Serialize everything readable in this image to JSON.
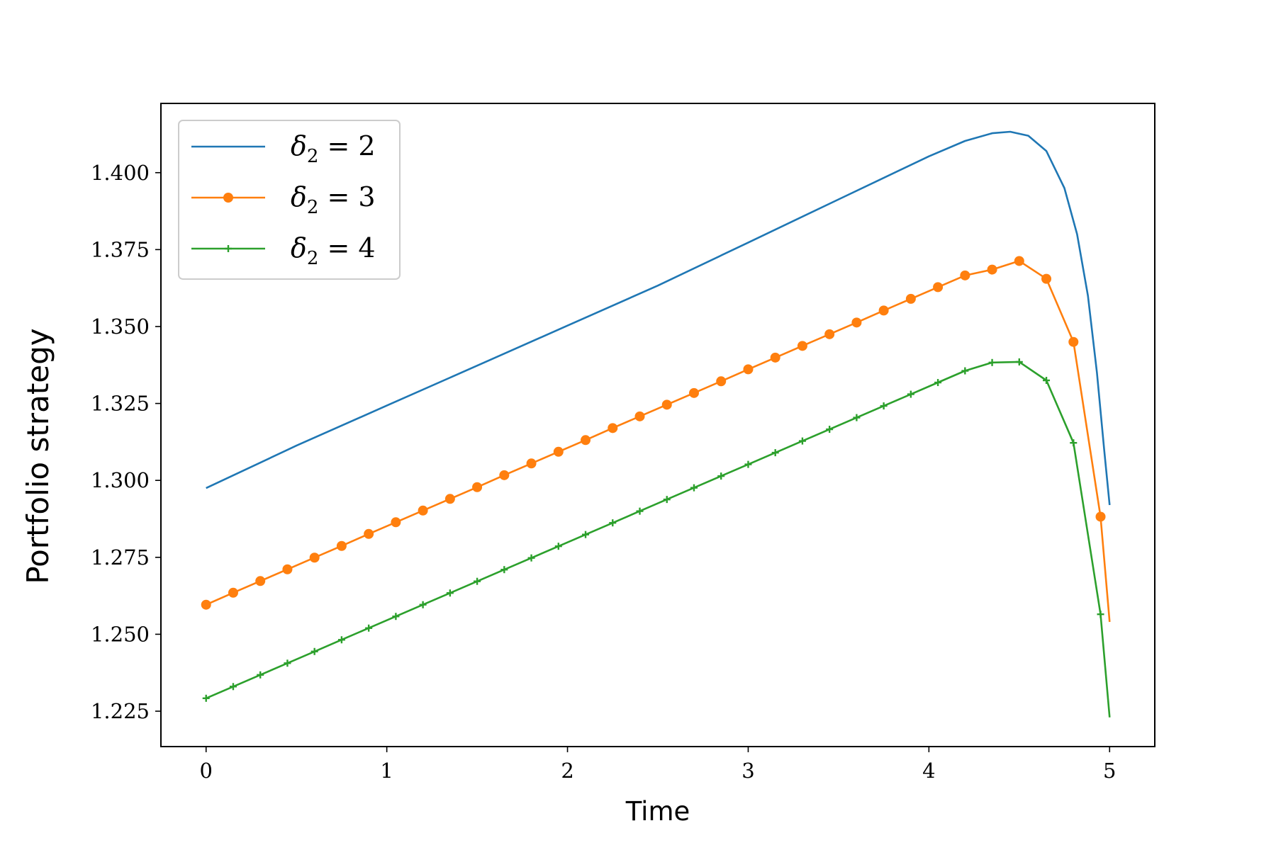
{
  "chart_data": {
    "type": "line",
    "title": "",
    "xlabel": "Time",
    "ylabel": "Portfolio strategy",
    "xlim": [
      -0.25,
      5.25
    ],
    "ylim": [
      1.2135,
      1.4225
    ],
    "xticks": [
      0,
      1,
      2,
      3,
      4,
      5
    ],
    "xtick_labels": [
      "0",
      "1",
      "2",
      "3",
      "4",
      "5"
    ],
    "yticks": [
      1.225,
      1.25,
      1.275,
      1.3,
      1.325,
      1.35,
      1.375,
      1.4
    ],
    "ytick_labels": [
      "1.225",
      "1.250",
      "1.275",
      "1.300",
      "1.325",
      "1.350",
      "1.375",
      "1.400"
    ],
    "grid": false,
    "legend_position": "upper-left",
    "series": [
      {
        "name": "δ₂ = 2",
        "color": "#1f77b4",
        "marker": "none",
        "x": [
          0,
          0.5,
          1,
          1.5,
          2,
          2.5,
          3,
          3.5,
          4,
          4.2,
          4.35,
          4.45,
          4.55,
          4.65,
          4.75,
          4.82,
          4.88,
          4.93,
          4.97,
          5.0
        ],
        "y": [
          1.2975,
          1.3113,
          1.3243,
          1.3373,
          1.3503,
          1.3633,
          1.3773,
          1.3913,
          1.4053,
          1.4103,
          1.4128,
          1.4133,
          1.412,
          1.407,
          1.395,
          1.38,
          1.36,
          1.335,
          1.31,
          1.292
        ]
      },
      {
        "name": "δ₂ = 3",
        "color": "#ff7f0e",
        "marker": "circle",
        "x": [
          0,
          0.15,
          0.3,
          0.45,
          0.6,
          0.75,
          0.9,
          1.05,
          1.2,
          1.35,
          1.5,
          1.65,
          1.8,
          1.95,
          2.1,
          2.25,
          2.4,
          2.55,
          2.7,
          2.85,
          3.0,
          3.15,
          3.3,
          3.45,
          3.6,
          3.75,
          3.9,
          4.05,
          4.2,
          4.35,
          4.5,
          4.65,
          4.8,
          4.95,
          5.0
        ],
        "y": [
          1.2596,
          1.2635,
          1.2673,
          1.2711,
          1.2749,
          1.2787,
          1.2826,
          1.2864,
          1.2902,
          1.294,
          1.2978,
          1.3017,
          1.3055,
          1.3093,
          1.3131,
          1.317,
          1.3208,
          1.3246,
          1.3284,
          1.3322,
          1.3361,
          1.3399,
          1.3437,
          1.3475,
          1.3513,
          1.3552,
          1.359,
          1.3628,
          1.3666,
          1.3685,
          1.3713,
          1.3655,
          1.345,
          1.2882,
          1.254
        ]
      },
      {
        "name": "δ₂ = 4",
        "color": "#2ca02c",
        "marker": "plus",
        "x": [
          0,
          0.15,
          0.3,
          0.45,
          0.6,
          0.75,
          0.9,
          1.05,
          1.2,
          1.35,
          1.5,
          1.65,
          1.8,
          1.95,
          2.1,
          2.25,
          2.4,
          2.55,
          2.7,
          2.85,
          3.0,
          3.15,
          3.3,
          3.45,
          3.6,
          3.75,
          3.9,
          4.05,
          4.2,
          4.35,
          4.5,
          4.65,
          4.8,
          4.95,
          5.0
        ],
        "y": [
          1.2292,
          1.233,
          1.2368,
          1.2406,
          1.2444,
          1.2482,
          1.252,
          1.2558,
          1.2596,
          1.2634,
          1.2672,
          1.271,
          1.2748,
          1.2786,
          1.2824,
          1.2862,
          1.29,
          1.2938,
          1.2976,
          1.3014,
          1.3052,
          1.309,
          1.3128,
          1.3166,
          1.3204,
          1.3242,
          1.328,
          1.3318,
          1.3356,
          1.3383,
          1.3385,
          1.3325,
          1.3122,
          1.2565,
          1.223
        ]
      }
    ],
    "legend": [
      {
        "prefix": "δ",
        "sub": "2",
        "suffix": " = 2",
        "color": "#1f77b4",
        "marker": "none"
      },
      {
        "prefix": "δ",
        "sub": "2",
        "suffix": " = 3",
        "color": "#ff7f0e",
        "marker": "circle"
      },
      {
        "prefix": "δ",
        "sub": "2",
        "suffix": " = 4",
        "color": "#2ca02c",
        "marker": "plus"
      }
    ]
  }
}
